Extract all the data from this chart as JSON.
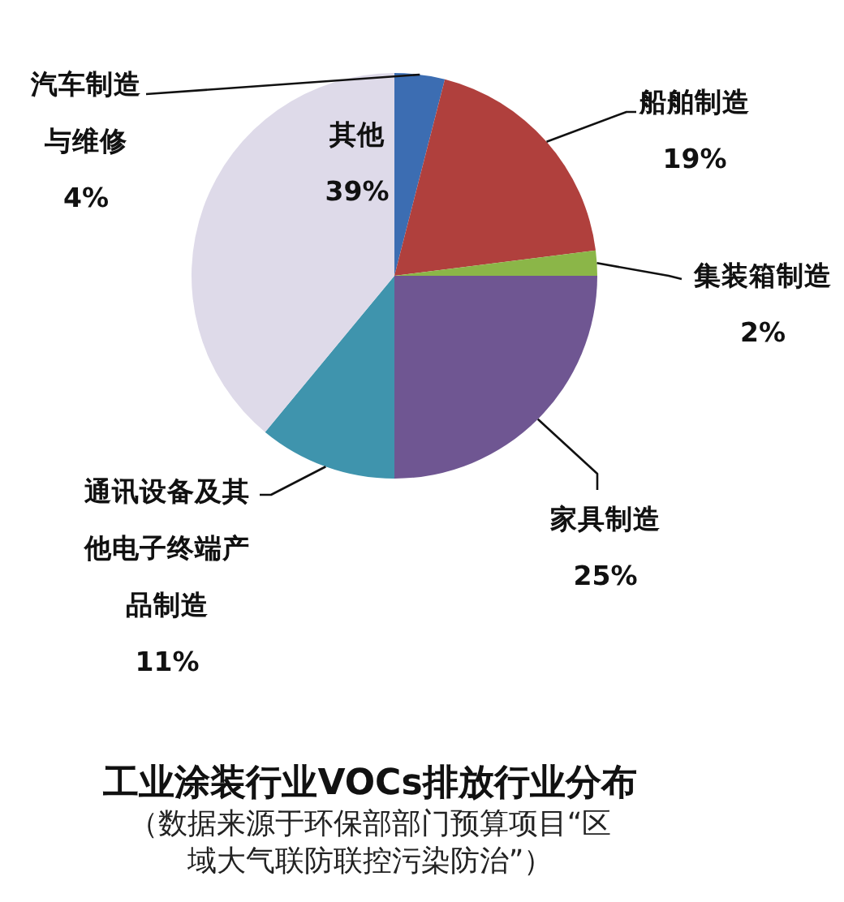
{
  "chart_data": {
    "type": "pie",
    "title": "工业涂装行业VOCs排放行业分布",
    "subtitle": "（数据来源于环保部部门预算项目“区域大气联防联控污染防治”）",
    "categories": [
      "汽车制造与维修",
      "船舶制造",
      "集装箱制造",
      "家具制造",
      "通讯设备及其他电子终端产品制造",
      "其他"
    ],
    "values": [
      4,
      19,
      2,
      25,
      11,
      39
    ],
    "colors": [
      "#3c6db2",
      "#b0403d",
      "#8bb648",
      "#6f5692",
      "#3f94ad",
      "#dedae9"
    ],
    "value_labels": [
      "4%",
      "19%",
      "2%",
      "25%",
      "11%",
      "39%"
    ]
  }
}
